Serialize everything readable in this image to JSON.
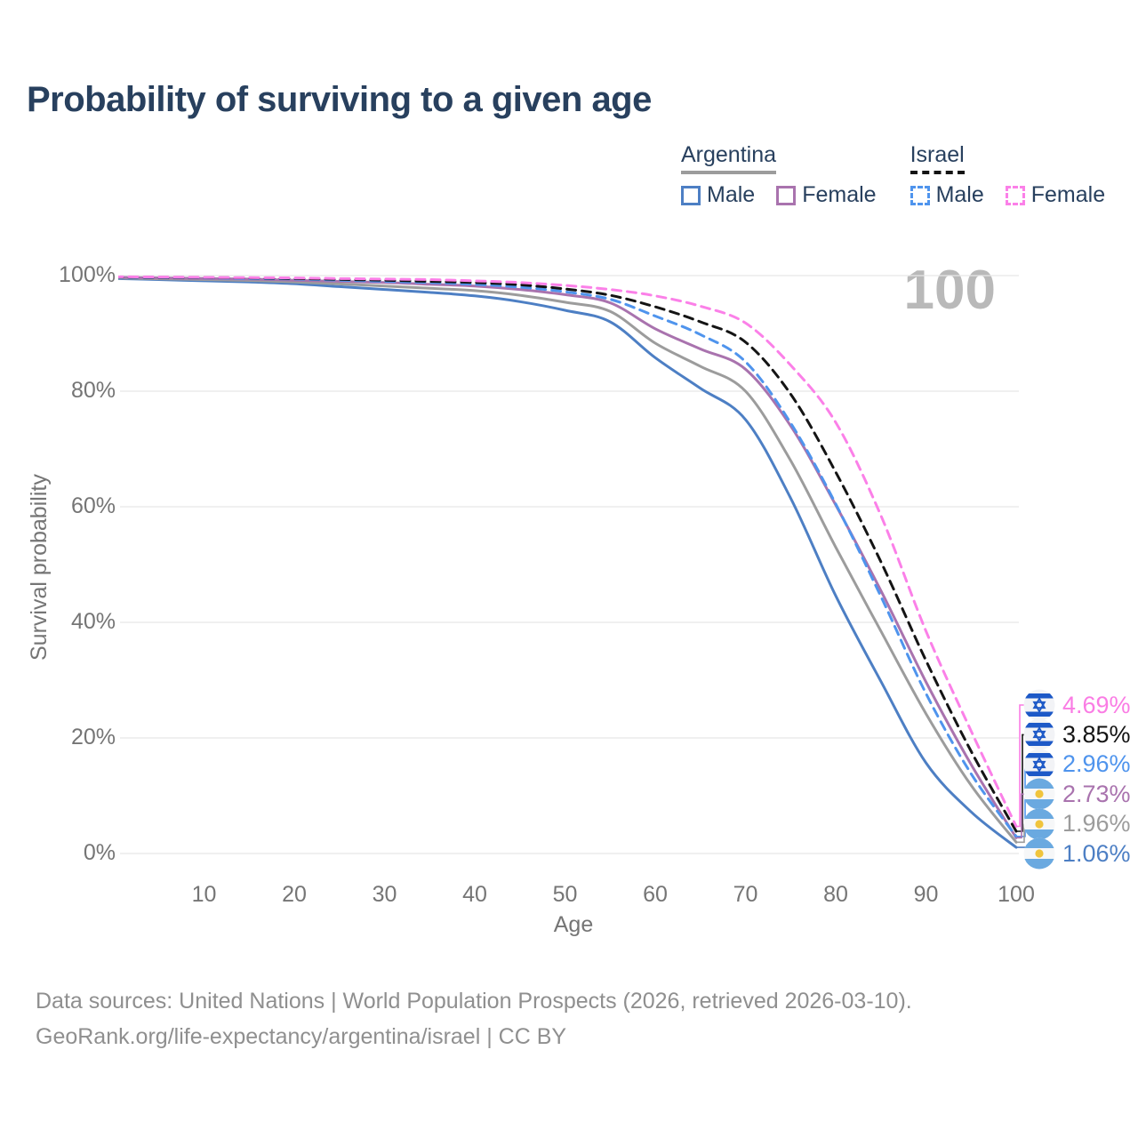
{
  "title": "Probability of surviving to a given age",
  "watermark": "100",
  "legend": {
    "groups": [
      {
        "label": "Argentina",
        "line_style": "solid",
        "underline_color": "#9c9c9c",
        "items": [
          {
            "label": "Male",
            "color": "#4d7fc4"
          },
          {
            "label": "Female",
            "color": "#a973ae"
          }
        ]
      },
      {
        "label": "Israel",
        "line_style": "dashed",
        "underline_color": "#141414",
        "items": [
          {
            "label": "Male",
            "color": "#4f94ed"
          },
          {
            "label": "Female",
            "color": "#fb80e8"
          }
        ]
      }
    ]
  },
  "axes": {
    "y_title": "Survival probability",
    "x_title": "Age",
    "y_ticks": [
      {
        "value": 100,
        "label": "100%"
      },
      {
        "value": 80,
        "label": "80%"
      },
      {
        "value": 60,
        "label": "60%"
      },
      {
        "value": 40,
        "label": "40%"
      },
      {
        "value": 20,
        "label": "20%"
      },
      {
        "value": 0,
        "label": "0%"
      }
    ],
    "x_ticks": [
      {
        "value": 10,
        "label": "10"
      },
      {
        "value": 20,
        "label": "20"
      },
      {
        "value": 30,
        "label": "30"
      },
      {
        "value": 40,
        "label": "40"
      },
      {
        "value": 50,
        "label": "50"
      },
      {
        "value": 60,
        "label": "60"
      },
      {
        "value": 70,
        "label": "70"
      },
      {
        "value": 80,
        "label": "80"
      },
      {
        "value": 90,
        "label": "90"
      },
      {
        "value": 100,
        "label": "100"
      }
    ]
  },
  "chart_data": {
    "type": "line",
    "title": "Probability of surviving to a given age",
    "xlabel": "Age",
    "ylabel": "Survival probability",
    "xlim": [
      0,
      100
    ],
    "ylim": [
      0,
      100
    ],
    "grid": "horizontal",
    "x_ages": [
      0,
      5,
      10,
      15,
      20,
      25,
      30,
      35,
      40,
      45,
      50,
      55,
      60,
      65,
      70,
      75,
      80,
      85,
      90,
      95,
      100
    ],
    "series": [
      {
        "name": "Argentina Male",
        "country": "argentina",
        "sex": "male",
        "style": "solid",
        "color": "#4d7fc4",
        "values": [
          99.5,
          99.3,
          99.1,
          98.9,
          98.6,
          98.1,
          97.6,
          97.1,
          96.5,
          95.5,
          94.0,
          92.0,
          85.8,
          80.5,
          75.1,
          61.5,
          44.6,
          29.8,
          15.7,
          7.2,
          1.06
        ]
      },
      {
        "name": "Argentina (both sexes)",
        "country": "argentina",
        "sex": "both",
        "style": "solid",
        "color": "#9c9c9c",
        "values": [
          99.6,
          99.45,
          99.3,
          99.15,
          98.9,
          98.55,
          98.2,
          97.8,
          97.4,
          96.6,
          95.4,
          93.8,
          88.3,
          84.3,
          80.0,
          68.0,
          53.0,
          38.5,
          24.2,
          11.8,
          1.96
        ]
      },
      {
        "name": "Argentina Female",
        "country": "argentina",
        "sex": "female",
        "style": "solid",
        "color": "#a973ae",
        "values": [
          99.7,
          99.6,
          99.5,
          99.4,
          99.2,
          99.0,
          98.8,
          98.5,
          98.2,
          97.6,
          96.7,
          95.3,
          90.8,
          87.3,
          83.8,
          74.0,
          60.3,
          45.5,
          29.7,
          15.4,
          2.73
        ]
      },
      {
        "name": "Israel Male",
        "country": "israel",
        "sex": "male",
        "style": "dashed",
        "color": "#4f94ed",
        "values": [
          99.7,
          99.65,
          99.6,
          99.5,
          99.4,
          99.2,
          99.0,
          98.8,
          98.5,
          98.0,
          97.2,
          95.9,
          93.0,
          89.8,
          85.1,
          74.5,
          60.5,
          44.5,
          27.7,
          13.8,
          2.96
        ]
      },
      {
        "name": "Israel (both sexes)",
        "country": "israel",
        "sex": "both",
        "style": "dashed",
        "color": "#141414",
        "values": [
          99.75,
          99.7,
          99.65,
          99.6,
          99.5,
          99.35,
          99.2,
          99.0,
          98.8,
          98.4,
          97.7,
          96.6,
          94.6,
          92.0,
          88.5,
          79.5,
          66.0,
          50.5,
          33.4,
          17.7,
          3.85
        ]
      },
      {
        "name": "Israel Female",
        "country": "israel",
        "sex": "female",
        "style": "dashed",
        "color": "#fb80e8",
        "values": [
          99.8,
          99.75,
          99.7,
          99.65,
          99.6,
          99.5,
          99.4,
          99.3,
          99.1,
          98.8,
          98.3,
          97.6,
          96.5,
          94.7,
          91.8,
          84.5,
          74.6,
          58.5,
          38.5,
          21.2,
          4.69
        ]
      }
    ],
    "end_labels": [
      {
        "country": "israel",
        "series": "Israel Female",
        "label": "4.69%",
        "pct": 4.69,
        "color": "#fa7ce4"
      },
      {
        "country": "israel",
        "series": "Israel (both sexes)",
        "label": "3.85%",
        "pct": 3.85,
        "color": "#141414"
      },
      {
        "country": "israel",
        "series": "Israel Male",
        "label": "2.96%",
        "pct": 2.96,
        "color": "#4f94ed"
      },
      {
        "country": "argentina",
        "series": "Argentina Female",
        "label": "2.73%",
        "pct": 2.73,
        "color": "#a973ae"
      },
      {
        "country": "argentina",
        "series": "Argentina (both sexes)",
        "label": "1.96%",
        "pct": 1.96,
        "color": "#9c9c9c"
      },
      {
        "country": "argentina",
        "series": "Argentina Male",
        "label": "1.06%",
        "pct": 1.06,
        "color": "#4d7fc4"
      }
    ]
  },
  "flags": {
    "israel": {
      "bg": "#f2f3f6",
      "stripe": "#1d59c7",
      "star": "#1d59c7"
    },
    "argentina": {
      "bg": "#f6f7f8",
      "band": "#6aa9e0",
      "sun": "#f0c43c"
    }
  },
  "footer": {
    "line1": "Data sources: United Nations | World Population Prospects (2026, retrieved 2026-03-10).",
    "line2": "GeoRank.org/life-expectancy/argentina/israel | CC BY"
  }
}
